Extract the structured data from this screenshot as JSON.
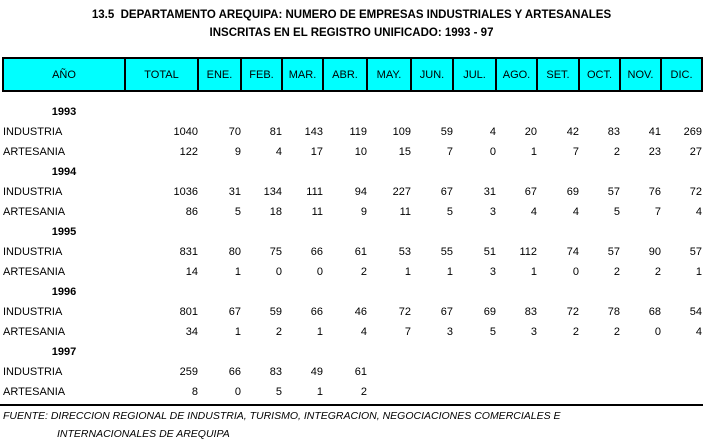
{
  "title": {
    "line1": "13.5  DEPARTAMENTO AREQUIPA: NUMERO DE EMPRESAS INDUSTRIALES Y ARTESANALES",
    "line2": "INSCRITAS EN EL REGISTRO UNIFICADO: 1993 - 97"
  },
  "table": {
    "header_bg": "#00ffff",
    "columns": [
      "AÑO",
      "TOTAL",
      "ENE.",
      "FEB.",
      "MAR.",
      "ABR.",
      "MAY.",
      "JUN.",
      "JUL.",
      "AGO.",
      "SET.",
      "OCT.",
      "NOV.",
      "DIC."
    ],
    "groups": [
      {
        "year": "1993",
        "rows": [
          {
            "label": "INDUSTRIA",
            "values": [
              "1040",
              "70",
              "81",
              "143",
              "119",
              "109",
              "59",
              "4",
              "20",
              "42",
              "83",
              "41",
              "269"
            ]
          },
          {
            "label": "ARTESANIA",
            "values": [
              "122",
              "9",
              "4",
              "17",
              "10",
              "15",
              "7",
              "0",
              "1",
              "7",
              "2",
              "23",
              "27"
            ]
          }
        ]
      },
      {
        "year": "1994",
        "rows": [
          {
            "label": "INDUSTRIA",
            "values": [
              "1036",
              "31",
              "134",
              "111",
              "94",
              "227",
              "67",
              "31",
              "67",
              "69",
              "57",
              "76",
              "72"
            ]
          },
          {
            "label": "ARTESANIA",
            "values": [
              "86",
              "5",
              "18",
              "11",
              "9",
              "11",
              "5",
              "3",
              "4",
              "4",
              "5",
              "7",
              "4"
            ]
          }
        ]
      },
      {
        "year": "1995",
        "rows": [
          {
            "label": "INDUSTRIA",
            "values": [
              "831",
              "80",
              "75",
              "66",
              "61",
              "53",
              "55",
              "51",
              "112",
              "74",
              "57",
              "90",
              "57"
            ]
          },
          {
            "label": "ARTESANIA",
            "values": [
              "14",
              "1",
              "0",
              "0",
              "2",
              "1",
              "1",
              "3",
              "1",
              "0",
              "2",
              "2",
              "1"
            ]
          }
        ]
      },
      {
        "year": "1996",
        "rows": [
          {
            "label": "INDUSTRIA",
            "values": [
              "801",
              "67",
              "59",
              "66",
              "46",
              "72",
              "67",
              "69",
              "83",
              "72",
              "78",
              "68",
              "54"
            ]
          },
          {
            "label": "ARTESANIA",
            "values": [
              "34",
              "1",
              "2",
              "1",
              "4",
              "7",
              "3",
              "5",
              "3",
              "2",
              "2",
              "0",
              "4"
            ]
          }
        ]
      },
      {
        "year": "1997",
        "rows": [
          {
            "label": "INDUSTRIA",
            "values": [
              "259",
              "66",
              "83",
              "49",
              "61",
              "",
              "",
              "",
              "",
              "",
              "",
              "",
              ""
            ]
          },
          {
            "label": "ARTESANIA",
            "values": [
              "8",
              "0",
              "5",
              "1",
              "2",
              "",
              "",
              "",
              "",
              "",
              "",
              "",
              ""
            ]
          }
        ]
      }
    ]
  },
  "footer": {
    "line1": "FUENTE: DIRECCION REGIONAL DE INDUSTRIA, TURISMO, INTEGRACION, NEGOCIACIONES COMERCIALES E",
    "line2": "INTERNACIONALES DE AREQUIPA"
  }
}
